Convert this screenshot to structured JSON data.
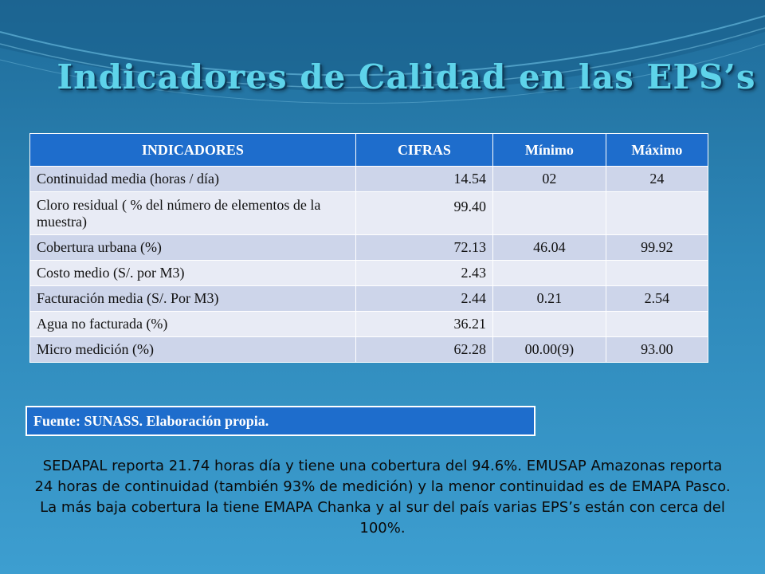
{
  "title": "Indicadores de Calidad en las EPS’s",
  "table": {
    "headers": [
      "INDICADORES",
      "CIFRAS",
      "Mínimo",
      "Máximo"
    ],
    "rows": [
      [
        "Continuidad media (horas / día)",
        "14.54",
        "02",
        "24"
      ],
      [
        "Cloro residual ( %  del número de elementos de la muestra)",
        "99.40",
        "",
        ""
      ],
      [
        "Cobertura urbana (%)",
        "72.13",
        "46.04",
        "99.92"
      ],
      [
        "Costo medio (S/. por M3)",
        "2.43",
        "",
        ""
      ],
      [
        "Facturación media (S/. Por M3)",
        "2.44",
        "0.21",
        "2.54"
      ],
      [
        "Agua no facturada (%)",
        "36.21",
        "",
        ""
      ],
      [
        "Micro medición (%)",
        "62.28",
        "00.00(9)",
        "93.00"
      ]
    ]
  },
  "source": "Fuente:  SUNASS. Elaboración propia.",
  "note": "SEDAPAL reporta 21.74 horas día y tiene una cobertura del 94.6%. EMUSAP Amazonas reporta 24 horas de continuidad (también 93% de medición) y la menor continuidad es de  EMAPA Pasco. La más baja cobertura la tiene EMAPA Chanka y al sur del país varias EPS’s están con cerca del 100%."
}
